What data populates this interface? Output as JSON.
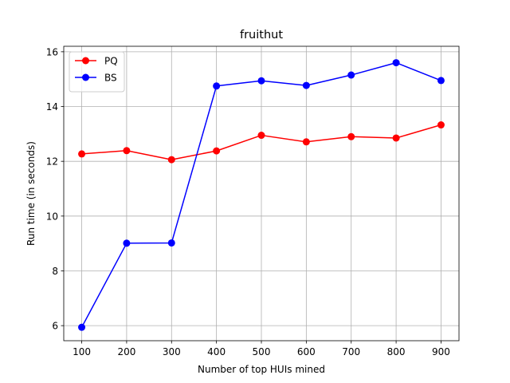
{
  "chart_data": {
    "type": "line",
    "title": "fruithut",
    "xlabel": "Number of top HUIs mined",
    "ylabel": "Run time (in seconds)",
    "x": [
      100,
      200,
      300,
      400,
      500,
      600,
      700,
      800,
      900
    ],
    "xticks": [
      "100",
      "200",
      "300",
      "400",
      "500",
      "600",
      "700",
      "800",
      "900"
    ],
    "yticks": [
      "6",
      "8",
      "10",
      "12",
      "14",
      "16"
    ],
    "xlim": [
      60,
      940
    ],
    "ylim": [
      5.45,
      16.2
    ],
    "grid": true,
    "legend_position": "upper-left",
    "series": [
      {
        "name": "PQ",
        "color": "#ff0000",
        "marker": "circle",
        "values": [
          12.27,
          12.39,
          12.06,
          12.38,
          12.95,
          12.71,
          12.9,
          12.85,
          13.33
        ]
      },
      {
        "name": "BS",
        "color": "#0000ff",
        "marker": "circle",
        "values": [
          5.94,
          9.01,
          9.02,
          14.75,
          14.94,
          14.77,
          15.15,
          15.6,
          14.95
        ]
      }
    ]
  }
}
